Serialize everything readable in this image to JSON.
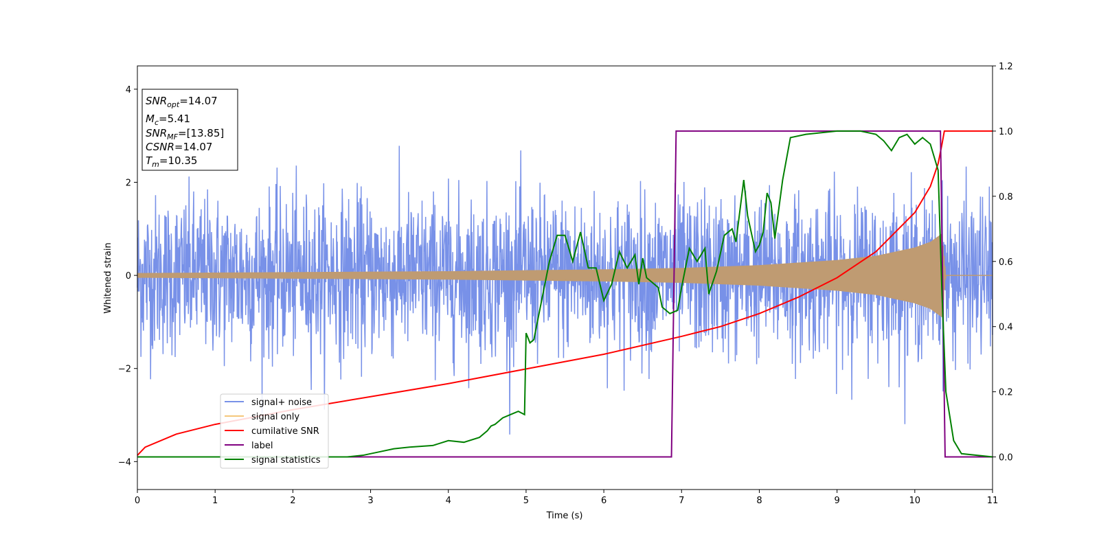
{
  "chart_data": {
    "type": "line",
    "xlabel": "Time (s)",
    "ylabel_left": "Whitened strain",
    "ylabel_right": "",
    "xlim": [
      0,
      11
    ],
    "ylim_left": [
      -4.6,
      4.5
    ],
    "ylim_right": [
      -0.1,
      1.2
    ],
    "x_ticks": [
      0,
      1,
      2,
      3,
      4,
      5,
      6,
      7,
      8,
      9,
      10,
      11
    ],
    "y_ticks_left": [
      -4,
      -2,
      0,
      2,
      4
    ],
    "y_ticks_left_labels": [
      "−4",
      "−2",
      "0",
      "2",
      "4"
    ],
    "y_ticks_right": [
      0.0,
      0.2,
      0.4,
      0.6,
      0.8,
      1.0,
      1.2
    ],
    "y_ticks_right_labels": [
      "0.0",
      "0.2",
      "0.4",
      "0.6",
      "0.8",
      "1.0",
      "1.2"
    ],
    "grid": false,
    "legend_placement": "lower-left",
    "info_box": {
      "lines": [
        {
          "main": "SNR",
          "sub": "opt",
          "rest": "=14.07"
        },
        {
          "main": "M",
          "sub": "c",
          "rest": "=5.41"
        },
        {
          "main": "SNR",
          "sub": "MF",
          "rest": "=[13.85]"
        },
        {
          "main": "CSNR",
          "sub": "",
          "rest": "=14.07"
        },
        {
          "main": "T",
          "sub": "m",
          "rest": "=10.35"
        }
      ]
    },
    "series": [
      {
        "name": "signal+ noise",
        "color": "#7891e8",
        "axis": "left",
        "kind": "noise",
        "noise_std": 0.85,
        "samples": 2400,
        "note_points": [
          [
            0,
            0
          ],
          [
            11,
            0
          ]
        ]
      },
      {
        "name": "signal only",
        "color": "#f5c77a",
        "render_color": "#bf9b72",
        "axis": "left",
        "kind": "chirp_envelope",
        "envelope": [
          [
            0.0,
            0.05
          ],
          [
            2.0,
            0.07
          ],
          [
            4.0,
            0.09
          ],
          [
            6.0,
            0.13
          ],
          [
            7.0,
            0.16
          ],
          [
            8.0,
            0.22
          ],
          [
            9.0,
            0.33
          ],
          [
            9.5,
            0.42
          ],
          [
            10.0,
            0.6
          ],
          [
            10.2,
            0.72
          ],
          [
            10.35,
            0.9
          ],
          [
            10.4,
            0.0
          ],
          [
            11.0,
            0.0
          ]
        ]
      },
      {
        "name": "cumilative SNR",
        "color": "#ff0000",
        "axis": "right",
        "kind": "line",
        "points": [
          [
            0.0,
            0.005
          ],
          [
            0.1,
            0.03
          ],
          [
            0.5,
            0.07
          ],
          [
            1.0,
            0.1
          ],
          [
            2.0,
            0.145
          ],
          [
            3.0,
            0.185
          ],
          [
            4.0,
            0.225
          ],
          [
            5.0,
            0.27
          ],
          [
            6.0,
            0.315
          ],
          [
            7.0,
            0.37
          ],
          [
            7.5,
            0.4
          ],
          [
            8.0,
            0.44
          ],
          [
            8.5,
            0.49
          ],
          [
            9.0,
            0.55
          ],
          [
            9.5,
            0.63
          ],
          [
            10.0,
            0.75
          ],
          [
            10.2,
            0.83
          ],
          [
            10.3,
            0.9
          ],
          [
            10.35,
            0.96
          ],
          [
            10.38,
            1.0
          ],
          [
            11.0,
            1.0
          ]
        ]
      },
      {
        "name": "label",
        "color": "#800080",
        "axis": "right",
        "kind": "line",
        "points": [
          [
            0.0,
            0.0
          ],
          [
            6.87,
            0.0
          ],
          [
            6.93,
            1.0
          ],
          [
            10.33,
            1.0
          ],
          [
            10.39,
            0.0
          ],
          [
            11.0,
            0.0
          ]
        ]
      },
      {
        "name": "signal statistics",
        "color": "#008000",
        "axis": "right",
        "kind": "line",
        "points": [
          [
            0.0,
            0.0
          ],
          [
            2.7,
            0.0
          ],
          [
            2.9,
            0.005
          ],
          [
            3.1,
            0.015
          ],
          [
            3.3,
            0.025
          ],
          [
            3.5,
            0.03
          ],
          [
            3.8,
            0.035
          ],
          [
            4.0,
            0.05
          ],
          [
            4.2,
            0.045
          ],
          [
            4.4,
            0.06
          ],
          [
            4.5,
            0.08
          ],
          [
            4.55,
            0.095
          ],
          [
            4.6,
            0.1
          ],
          [
            4.7,
            0.12
          ],
          [
            4.8,
            0.13
          ],
          [
            4.9,
            0.14
          ],
          [
            4.98,
            0.13
          ],
          [
            5.0,
            0.38
          ],
          [
            5.05,
            0.35
          ],
          [
            5.1,
            0.36
          ],
          [
            5.2,
            0.48
          ],
          [
            5.3,
            0.6
          ],
          [
            5.4,
            0.68
          ],
          [
            5.5,
            0.68
          ],
          [
            5.6,
            0.6
          ],
          [
            5.7,
            0.69
          ],
          [
            5.8,
            0.58
          ],
          [
            5.9,
            0.58
          ],
          [
            6.0,
            0.48
          ],
          [
            6.1,
            0.53
          ],
          [
            6.15,
            0.58
          ],
          [
            6.2,
            0.63
          ],
          [
            6.3,
            0.58
          ],
          [
            6.4,
            0.62
          ],
          [
            6.45,
            0.53
          ],
          [
            6.5,
            0.61
          ],
          [
            6.55,
            0.55
          ],
          [
            6.7,
            0.52
          ],
          [
            6.75,
            0.46
          ],
          [
            6.85,
            0.44
          ],
          [
            6.95,
            0.45
          ],
          [
            7.0,
            0.52
          ],
          [
            7.1,
            0.64
          ],
          [
            7.2,
            0.6
          ],
          [
            7.3,
            0.64
          ],
          [
            7.35,
            0.5
          ],
          [
            7.45,
            0.57
          ],
          [
            7.55,
            0.68
          ],
          [
            7.65,
            0.7
          ],
          [
            7.7,
            0.66
          ],
          [
            7.8,
            0.85
          ],
          [
            7.85,
            0.74
          ],
          [
            7.95,
            0.63
          ],
          [
            8.0,
            0.65
          ],
          [
            8.05,
            0.69
          ],
          [
            8.1,
            0.81
          ],
          [
            8.15,
            0.78
          ],
          [
            8.2,
            0.67
          ],
          [
            8.3,
            0.85
          ],
          [
            8.4,
            0.98
          ],
          [
            8.6,
            0.99
          ],
          [
            9.0,
            1.0
          ],
          [
            9.3,
            1.0
          ],
          [
            9.5,
            0.99
          ],
          [
            9.6,
            0.97
          ],
          [
            9.7,
            0.94
          ],
          [
            9.8,
            0.98
          ],
          [
            9.9,
            0.99
          ],
          [
            10.0,
            0.96
          ],
          [
            10.1,
            0.98
          ],
          [
            10.2,
            0.96
          ],
          [
            10.3,
            0.88
          ],
          [
            10.35,
            0.5
          ],
          [
            10.4,
            0.2
          ],
          [
            10.5,
            0.05
          ],
          [
            10.6,
            0.01
          ],
          [
            11.0,
            0.0
          ]
        ]
      }
    ]
  }
}
